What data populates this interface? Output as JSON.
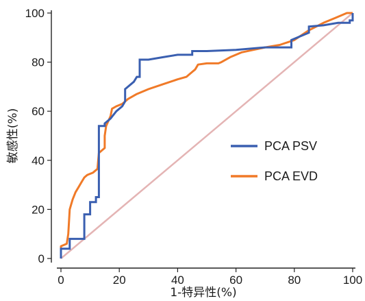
{
  "chart_data": {
    "type": "line",
    "title": "",
    "xlabel": "1-特异性(%)",
    "ylabel": "敏感性(%)",
    "xlim": [
      0,
      100
    ],
    "ylim": [
      0,
      100
    ],
    "xticks": [
      0,
      20,
      40,
      60,
      80,
      100
    ],
    "yticks": [
      0,
      20,
      40,
      60,
      80,
      100
    ],
    "grid": false,
    "legend_position": "center-right",
    "series": [
      {
        "name": "PCA PSV",
        "color": "#3a5fb0",
        "step": true,
        "points": [
          [
            0,
            0
          ],
          [
            0,
            4
          ],
          [
            3,
            4
          ],
          [
            3,
            8
          ],
          [
            8,
            8
          ],
          [
            8,
            18
          ],
          [
            10,
            18
          ],
          [
            10,
            23
          ],
          [
            12,
            23
          ],
          [
            12,
            25
          ],
          [
            13,
            25
          ],
          [
            13,
            54
          ],
          [
            15,
            54
          ],
          [
            15,
            55
          ],
          [
            17,
            57
          ],
          [
            19,
            60
          ],
          [
            21,
            62
          ],
          [
            22,
            64
          ],
          [
            22,
            69
          ],
          [
            24,
            71
          ],
          [
            25,
            72
          ],
          [
            26,
            74
          ],
          [
            27,
            74
          ],
          [
            27,
            81
          ],
          [
            30,
            81
          ],
          [
            35,
            82
          ],
          [
            40,
            83
          ],
          [
            45,
            83
          ],
          [
            45,
            84.5
          ],
          [
            50,
            84.5
          ],
          [
            60,
            85
          ],
          [
            70,
            86
          ],
          [
            75,
            86
          ],
          [
            79,
            86
          ],
          [
            79,
            89
          ],
          [
            82,
            90.5
          ],
          [
            85,
            92
          ],
          [
            85,
            94.5
          ],
          [
            90,
            95
          ],
          [
            95,
            96
          ],
          [
            99,
            96
          ],
          [
            99,
            97
          ],
          [
            100,
            97
          ],
          [
            100,
            100
          ]
        ]
      },
      {
        "name": "PCA EVD",
        "color": "#f07a28",
        "step": false,
        "points": [
          [
            0,
            0
          ],
          [
            0,
            5
          ],
          [
            2,
            6
          ],
          [
            2.5,
            10
          ],
          [
            3,
            20
          ],
          [
            4,
            24
          ],
          [
            5,
            27
          ],
          [
            6,
            29
          ],
          [
            7,
            31
          ],
          [
            8,
            33
          ],
          [
            9,
            34
          ],
          [
            11,
            35
          ],
          [
            12.5,
            36.5
          ],
          [
            13,
            43
          ],
          [
            14,
            44
          ],
          [
            15,
            45
          ],
          [
            15,
            50
          ],
          [
            15.5,
            54
          ],
          [
            17,
            58
          ],
          [
            17.5,
            61
          ],
          [
            19,
            62
          ],
          [
            21,
            63
          ],
          [
            23,
            65
          ],
          [
            26,
            67
          ],
          [
            30,
            69
          ],
          [
            35,
            71
          ],
          [
            40,
            73
          ],
          [
            43,
            74
          ],
          [
            44,
            75
          ],
          [
            45,
            76
          ],
          [
            46,
            77
          ],
          [
            47,
            79
          ],
          [
            50,
            79.5
          ],
          [
            54,
            79.5
          ],
          [
            55,
            80
          ],
          [
            58,
            82
          ],
          [
            62,
            84
          ],
          [
            66,
            85
          ],
          [
            70,
            86
          ],
          [
            75,
            87
          ],
          [
            80,
            89
          ],
          [
            85,
            93
          ],
          [
            90,
            96
          ],
          [
            94,
            98
          ],
          [
            98,
            100
          ],
          [
            100,
            100
          ]
        ]
      }
    ],
    "reference_line": {
      "from": [
        0,
        0
      ],
      "to": [
        100,
        100
      ],
      "color": "#e4b4b4"
    }
  }
}
